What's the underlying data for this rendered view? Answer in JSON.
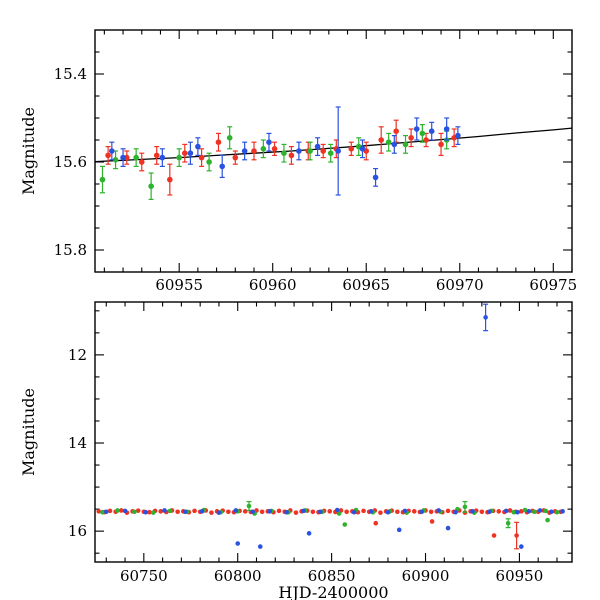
{
  "figure": {
    "background": "#ffffff"
  },
  "colors": {
    "red": "#ee3224",
    "green": "#2db32d",
    "blue": "#2a52e0",
    "curve": "#000000",
    "frame": "#000000"
  },
  "labels": {
    "ylabel": "Magnitude",
    "xlabel": "HJD-2400000"
  },
  "chart_data": [
    {
      "type": "scatter",
      "panel": "top",
      "title": "",
      "ylabel": "Magnitude",
      "xlabel": "",
      "xlim": [
        60950.5,
        60976
      ],
      "ylim": [
        15.3,
        15.85
      ],
      "y_inverted": true,
      "grid": false,
      "legend": "none",
      "xtick_values": [
        60955,
        60960,
        60965,
        60970,
        60975
      ],
      "xtick_labels": [
        "60955",
        "60960",
        "60965",
        "60970",
        "60975"
      ],
      "x_minor_step": 1,
      "ytick_values": [
        15.4,
        15.6,
        15.8
      ],
      "ytick_labels": [
        "15.4",
        "15.6",
        "15.8"
      ],
      "y_minor_step": 0.05,
      "marker_radius": 2.8,
      "error_caps": true,
      "series": [
        {
          "name": "red",
          "color_key": "red",
          "points": [
            [
              60951.2,
              15.585,
              0.02
            ],
            [
              60952.2,
              15.59,
              0.015
            ],
            [
              60953.0,
              15.6,
              0.02
            ],
            [
              60953.8,
              15.585,
              0.02
            ],
            [
              60954.5,
              15.64,
              0.035
            ],
            [
              60955.3,
              15.58,
              0.02
            ],
            [
              60956.2,
              15.59,
              0.02
            ],
            [
              60957.1,
              15.555,
              0.02
            ],
            [
              60958.0,
              15.59,
              0.015
            ],
            [
              60959.0,
              15.575,
              0.02
            ],
            [
              60960.1,
              15.57,
              0.015
            ],
            [
              60961.0,
              15.585,
              0.02
            ],
            [
              60961.9,
              15.575,
              0.02
            ],
            [
              60962.7,
              15.575,
              0.015
            ],
            [
              60963.4,
              15.57,
              0.02
            ],
            [
              60964.2,
              15.57,
              0.015
            ],
            [
              60965.0,
              15.575,
              0.02
            ],
            [
              60965.8,
              15.55,
              0.03
            ],
            [
              60966.6,
              15.53,
              0.025
            ],
            [
              60967.4,
              15.545,
              0.02
            ],
            [
              60968.2,
              15.55,
              0.015
            ],
            [
              60969.0,
              15.56,
              0.025
            ],
            [
              60969.7,
              15.545,
              0.02
            ]
          ]
        },
        {
          "name": "green",
          "color_key": "green",
          "points": [
            [
              60950.9,
              15.64,
              0.03
            ],
            [
              60951.6,
              15.595,
              0.02
            ],
            [
              60952.7,
              15.59,
              0.02
            ],
            [
              60953.5,
              15.655,
              0.03
            ],
            [
              60955.0,
              15.59,
              0.02
            ],
            [
              60956.6,
              15.6,
              0.02
            ],
            [
              60957.7,
              15.545,
              0.025
            ],
            [
              60959.5,
              15.57,
              0.02
            ],
            [
              60960.6,
              15.58,
              0.02
            ],
            [
              60962.0,
              15.575,
              0.02
            ],
            [
              60963.1,
              15.58,
              0.02
            ],
            [
              60964.6,
              15.565,
              0.02
            ],
            [
              60966.2,
              15.555,
              0.02
            ],
            [
              60967.1,
              15.56,
              0.02
            ],
            [
              60968.0,
              15.535,
              0.02
            ],
            [
              60969.3,
              15.55,
              0.02
            ]
          ]
        },
        {
          "name": "blue",
          "color_key": "blue",
          "points": [
            [
              60951.4,
              15.575,
              0.02
            ],
            [
              60952.0,
              15.59,
              0.02
            ],
            [
              60954.1,
              15.59,
              0.02
            ],
            [
              60955.6,
              15.58,
              0.025
            ],
            [
              60956.0,
              15.565,
              0.02
            ],
            [
              60957.3,
              15.61,
              0.025
            ],
            [
              60958.5,
              15.575,
              0.02
            ],
            [
              60959.8,
              15.555,
              0.02
            ],
            [
              60961.4,
              15.575,
              0.02
            ],
            [
              60962.4,
              15.565,
              0.02
            ],
            [
              60963.5,
              15.575,
              0.1
            ],
            [
              60964.8,
              15.57,
              0.02
            ],
            [
              60965.5,
              15.635,
              0.02
            ],
            [
              60966.5,
              15.56,
              0.02
            ],
            [
              60967.7,
              15.525,
              0.025
            ],
            [
              60968.5,
              15.53,
              0.02
            ],
            [
              60969.3,
              15.525,
              0.025
            ],
            [
              60969.9,
              15.54,
              0.02
            ]
          ]
        }
      ],
      "model_curve": {
        "color_key": "curve",
        "points": [
          [
            60950.5,
            15.599
          ],
          [
            60953,
            15.594
          ],
          [
            60955,
            15.59
          ],
          [
            60957,
            15.585
          ],
          [
            60959,
            15.58
          ],
          [
            60961,
            15.575
          ],
          [
            60963,
            15.569
          ],
          [
            60965,
            15.563
          ],
          [
            60967,
            15.556
          ],
          [
            60969,
            15.549
          ],
          [
            60971,
            15.542
          ],
          [
            60973,
            15.534
          ],
          [
            60975,
            15.527
          ],
          [
            60976,
            15.523
          ]
        ]
      }
    },
    {
      "type": "scatter",
      "panel": "bottom",
      "title": "",
      "ylabel": "Magnitude",
      "xlabel": "HJD-2400000",
      "xlim": [
        60724,
        60978
      ],
      "ylim": [
        10.8,
        16.7
      ],
      "y_inverted": true,
      "grid": false,
      "legend": "none",
      "xtick_values": [
        60750,
        60800,
        60850,
        60900,
        60950
      ],
      "xtick_labels": [
        "60750",
        "60800",
        "60850",
        "60900",
        "60950"
      ],
      "x_minor_step": 10,
      "ytick_values": [
        12,
        14,
        16
      ],
      "ytick_labels": [
        "12",
        "14",
        "16"
      ],
      "y_minor_step": 0.5,
      "marker_radius": 2.3,
      "error_caps": true,
      "series": [
        {
          "name": "red",
          "color_key": "red",
          "points": [
            [
              60726,
              15.55
            ],
            [
              60729,
              15.57
            ],
            [
              60732,
              15.54
            ],
            [
              60735,
              15.56
            ],
            [
              60738,
              15.53
            ],
            [
              60741,
              15.58
            ],
            [
              60744,
              15.55
            ],
            [
              60747,
              15.535
            ],
            [
              60750,
              15.56
            ],
            [
              60753,
              15.57
            ],
            [
              60756,
              15.54
            ],
            [
              60759,
              15.55
            ],
            [
              60762,
              15.565
            ],
            [
              60765,
              15.53
            ],
            [
              60768,
              15.56
            ],
            [
              60771,
              15.55
            ],
            [
              60774,
              15.57
            ],
            [
              60777,
              15.54
            ],
            [
              60780,
              15.56
            ],
            [
              60783,
              15.53
            ],
            [
              60786,
              15.58
            ],
            [
              60789,
              15.55
            ],
            [
              60792,
              15.535
            ],
            [
              60795,
              15.56
            ],
            [
              60798,
              15.57
            ],
            [
              60801,
              15.54
            ],
            [
              60804,
              15.55
            ],
            [
              60807,
              15.565
            ],
            [
              60810,
              15.53
            ],
            [
              60813,
              15.56
            ],
            [
              60816,
              15.55
            ],
            [
              60819,
              15.57
            ],
            [
              60822,
              15.54
            ],
            [
              60825,
              15.56
            ],
            [
              60828,
              15.53
            ],
            [
              60831,
              15.58
            ],
            [
              60834,
              15.55
            ],
            [
              60837,
              15.535
            ],
            [
              60840,
              15.56
            ],
            [
              60843,
              15.57
            ],
            [
              60846,
              15.54
            ],
            [
              60849,
              15.55
            ],
            [
              60852,
              15.565
            ],
            [
              60855,
              15.53
            ],
            [
              60858,
              15.56
            ],
            [
              60861,
              15.55
            ],
            [
              60864,
              15.57
            ],
            [
              60867,
              15.54
            ],
            [
              60870,
              15.56
            ],
            [
              60873,
              15.53
            ],
            [
              60876,
              15.58
            ],
            [
              60879,
              15.55
            ],
            [
              60882,
              15.535
            ],
            [
              60885,
              15.56
            ],
            [
              60888,
              15.57
            ],
            [
              60891,
              15.54
            ],
            [
              60894,
              15.55
            ],
            [
              60897,
              15.565
            ],
            [
              60900,
              15.53
            ],
            [
              60903,
              15.56
            ],
            [
              60906,
              15.55
            ],
            [
              60909,
              15.57
            ],
            [
              60912,
              15.54
            ],
            [
              60915,
              15.56
            ],
            [
              60918,
              15.53
            ],
            [
              60921,
              15.58
            ],
            [
              60924,
              15.55
            ],
            [
              60927,
              15.535
            ],
            [
              60930,
              15.56
            ],
            [
              60933,
              15.57
            ],
            [
              60936,
              15.54
            ],
            [
              60939,
              15.55
            ],
            [
              60942,
              15.565
            ],
            [
              60945,
              15.53
            ],
            [
              60948,
              15.56
            ],
            [
              60951,
              15.55
            ],
            [
              60954,
              15.57
            ],
            [
              60957,
              15.54
            ],
            [
              60960,
              15.56
            ],
            [
              60963,
              15.53
            ],
            [
              60966,
              15.58
            ],
            [
              60969,
              15.55
            ],
            [
              60972,
              15.56
            ],
            [
              60873.5,
              15.82
            ],
            [
              60903.5,
              15.78
            ],
            [
              60936.5,
              16.1
            ],
            [
              60948.5,
              16.1,
              0.3
            ]
          ]
        },
        {
          "name": "green",
          "color_key": "green",
          "points": [
            [
              60728,
              15.57
            ],
            [
              60736,
              15.53
            ],
            [
              60745,
              15.56
            ],
            [
              60755,
              15.58
            ],
            [
              60764,
              15.54
            ],
            [
              60773,
              15.56
            ],
            [
              60782,
              15.52
            ],
            [
              60791,
              15.57
            ],
            [
              60800,
              15.55
            ],
            [
              60806,
              15.43,
              0.1
            ],
            [
              60809,
              15.6
            ],
            [
              60818,
              15.54
            ],
            [
              60827,
              15.57
            ],
            [
              60836,
              15.53
            ],
            [
              60845,
              15.56
            ],
            [
              60854,
              15.6
            ],
            [
              60857,
              15.85
            ],
            [
              60863,
              15.52
            ],
            [
              60872,
              15.57
            ],
            [
              60881,
              15.55
            ],
            [
              60890,
              15.58
            ],
            [
              60899,
              15.53
            ],
            [
              60908,
              15.56
            ],
            [
              60917,
              15.5
            ],
            [
              60921,
              15.45,
              0.12
            ],
            [
              60926,
              15.58
            ],
            [
              60935,
              15.54
            ],
            [
              60944,
              15.82,
              0.1
            ],
            [
              60947,
              15.57
            ],
            [
              60953,
              15.52
            ],
            [
              60958,
              15.56
            ],
            [
              60964,
              15.54
            ],
            [
              60965,
              15.75
            ],
            [
              60970,
              15.57
            ]
          ]
        },
        {
          "name": "blue",
          "color_key": "blue",
          "points": [
            [
              60730,
              15.56
            ],
            [
              60740,
              15.54
            ],
            [
              60751,
              15.57
            ],
            [
              60761,
              15.53
            ],
            [
              60772,
              15.56
            ],
            [
              60781,
              15.55
            ],
            [
              60790,
              15.58
            ],
            [
              60799,
              15.53
            ],
            [
              60800,
              16.28
            ],
            [
              60808,
              15.56
            ],
            [
              60812,
              16.35
            ],
            [
              60817,
              15.55
            ],
            [
              60826,
              15.57
            ],
            [
              60835,
              15.54
            ],
            [
              60838,
              16.05
            ],
            [
              60844,
              15.56
            ],
            [
              60853,
              15.52
            ],
            [
              60862,
              15.57
            ],
            [
              60871,
              15.55
            ],
            [
              60880,
              15.57
            ],
            [
              60886,
              15.97
            ],
            [
              60889,
              15.54
            ],
            [
              60898,
              15.56
            ],
            [
              60907,
              15.53
            ],
            [
              60912,
              15.93
            ],
            [
              60916,
              15.57
            ],
            [
              60925,
              15.55
            ],
            [
              60932,
              11.15,
              0.3
            ],
            [
              60934,
              15.56
            ],
            [
              60943,
              15.54
            ],
            [
              60949,
              15.57
            ],
            [
              60951,
              16.35
            ],
            [
              60955,
              15.55
            ],
            [
              60961,
              15.53
            ],
            [
              60967,
              15.56
            ],
            [
              60973,
              15.55
            ]
          ]
        }
      ]
    }
  ]
}
